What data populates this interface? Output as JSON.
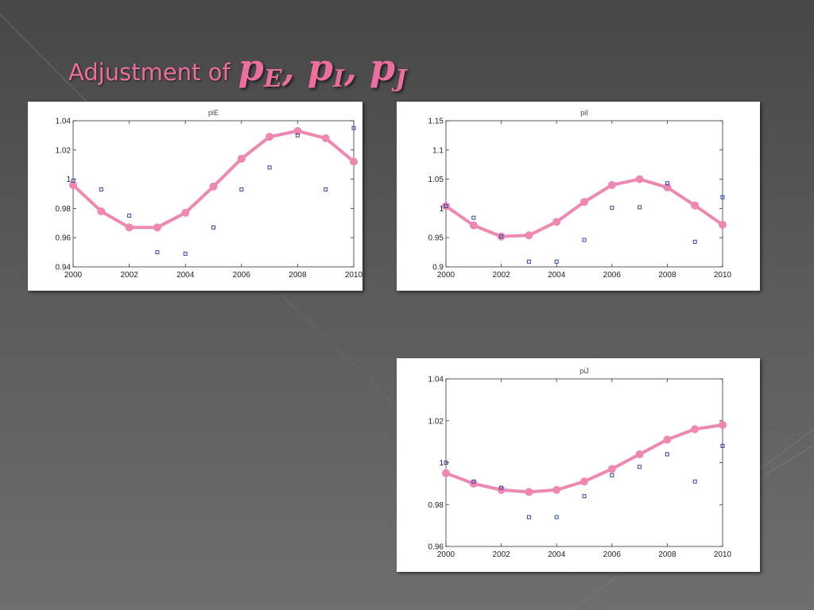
{
  "slide": {
    "title_text": "Adjustment of",
    "title_math": [
      {
        "base": "p",
        "sub": "E"
      },
      {
        "base": "p",
        "sub": "I"
      },
      {
        "base": "p",
        "sub": "J"
      }
    ],
    "title_separator": ", ",
    "accent_color": "#ea6f9e"
  },
  "chart_data": [
    {
      "id": "piE",
      "type": "line",
      "title": "piE",
      "x": [
        2000,
        2001,
        2002,
        2003,
        2004,
        2005,
        2006,
        2007,
        2008,
        2009,
        2010
      ],
      "xlim": [
        2000,
        2010
      ],
      "xticks": [
        2000,
        2002,
        2004,
        2006,
        2008,
        2010
      ],
      "ylim": [
        0.94,
        1.04
      ],
      "yticks": [
        0.94,
        0.96,
        0.98,
        1.0,
        1.02,
        1.04
      ],
      "ytick_labels": [
        "0.94",
        "0.96",
        "0.98",
        "1",
        "1.02",
        "1.04"
      ],
      "series": [
        {
          "style": "line-marker",
          "color": "#ee88b0",
          "values": [
            0.996,
            0.978,
            0.967,
            0.967,
            0.977,
            0.995,
            1.014,
            1.029,
            1.033,
            1.028,
            1.012
          ]
        },
        {
          "style": "square-marker",
          "color": "#3344aa",
          "values": [
            0.999,
            0.993,
            0.975,
            0.95,
            0.949,
            0.967,
            0.993,
            1.008,
            1.03,
            0.993,
            1.035
          ]
        }
      ]
    },
    {
      "id": "piI",
      "type": "line",
      "title": "piI",
      "x": [
        2000,
        2001,
        2002,
        2003,
        2004,
        2005,
        2006,
        2007,
        2008,
        2009,
        2010
      ],
      "xlim": [
        2000,
        2010
      ],
      "xticks": [
        2000,
        2002,
        2004,
        2006,
        2008,
        2010
      ],
      "ylim": [
        0.9,
        1.15
      ],
      "yticks": [
        0.9,
        0.95,
        1.0,
        1.05,
        1.1,
        1.15
      ],
      "ytick_labels": [
        "0.9",
        "0.95",
        "1",
        "1.05",
        "1.1",
        "1.15"
      ],
      "series": [
        {
          "style": "line-marker",
          "color": "#ee88b0",
          "values": [
            1.004,
            0.971,
            0.952,
            0.954,
            0.977,
            1.011,
            1.04,
            1.05,
            1.036,
            1.005,
            0.972
          ]
        },
        {
          "style": "square-marker",
          "color": "#3344aa",
          "values": [
            1.004,
            0.984,
            0.952,
            0.909,
            0.909,
            0.946,
            1.001,
            1.002,
            1.043,
            0.943,
            1.019
          ]
        }
      ]
    },
    {
      "id": "piJ",
      "type": "line",
      "title": "piJ",
      "x": [
        2000,
        2001,
        2002,
        2003,
        2004,
        2005,
        2006,
        2007,
        2008,
        2009,
        2010
      ],
      "xlim": [
        2000,
        2010
      ],
      "xticks": [
        2000,
        2002,
        2004,
        2006,
        2008,
        2010
      ],
      "ylim": [
        0.96,
        1.04
      ],
      "yticks": [
        0.96,
        0.98,
        1.0,
        1.02,
        1.04
      ],
      "ytick_labels": [
        "0.96",
        "0.98",
        "1",
        "1.02",
        "1.04"
      ],
      "series": [
        {
          "style": "line-marker",
          "color": "#ee88b0",
          "values": [
            0.995,
            0.99,
            0.987,
            0.986,
            0.987,
            0.991,
            0.997,
            1.004,
            1.011,
            1.016,
            1.018
          ]
        },
        {
          "style": "square-marker",
          "color": "#3344aa",
          "values": [
            1.0,
            0.991,
            0.988,
            0.974,
            0.974,
            0.984,
            0.994,
            0.998,
            1.004,
            0.991,
            1.008
          ]
        }
      ]
    }
  ]
}
